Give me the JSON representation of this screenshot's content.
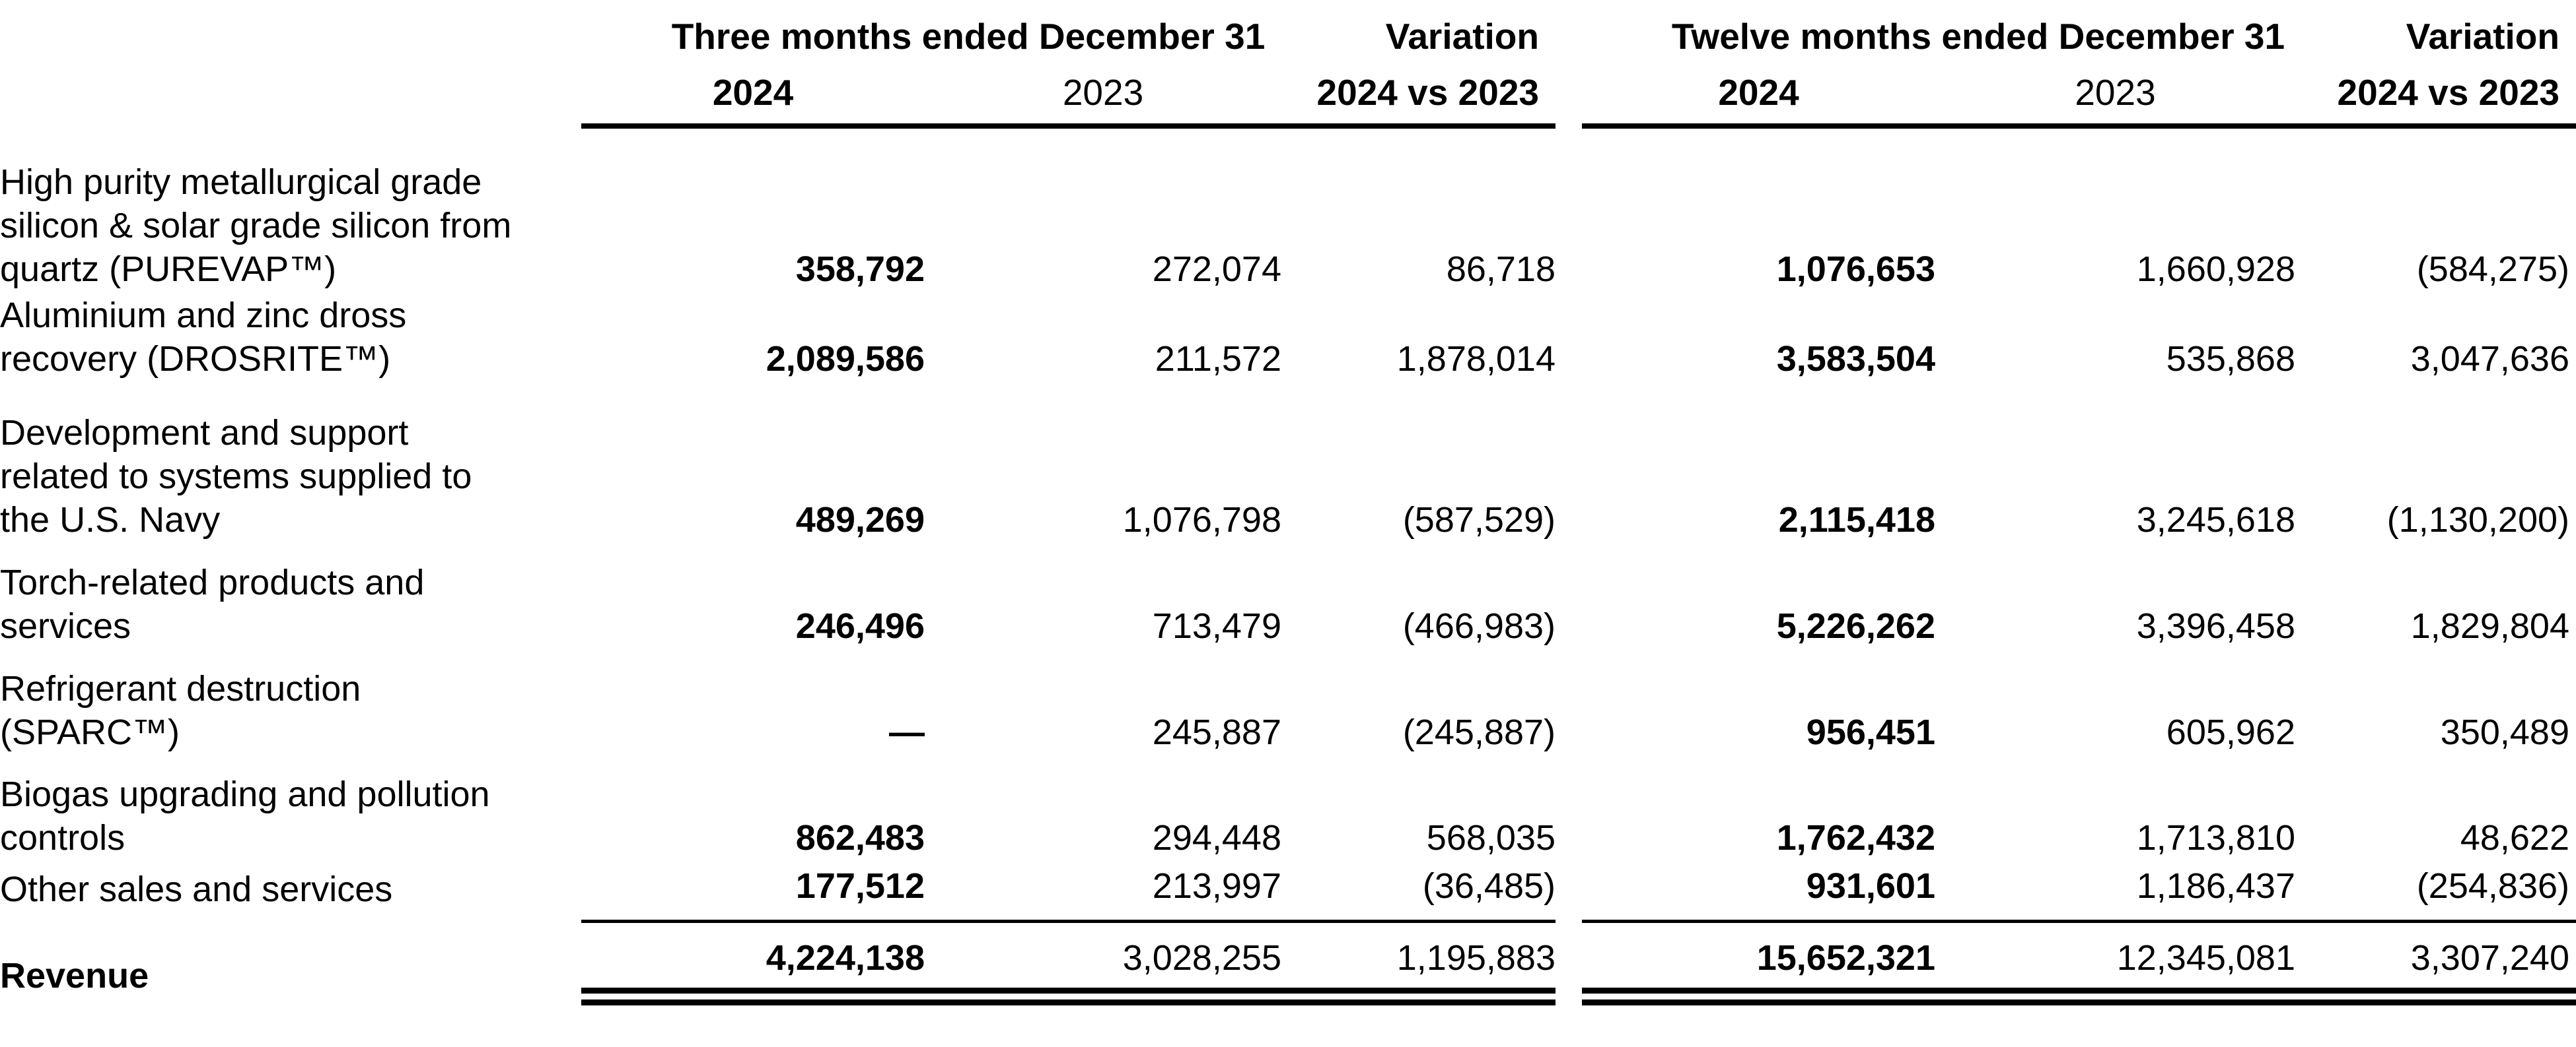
{
  "table": {
    "groups": [
      {
        "title": "Three months ended December 31",
        "variation_label": "Variation"
      },
      {
        "title": "Twelve months ended December 31",
        "variation_label": "Variation"
      }
    ],
    "year_headers": [
      "2024",
      "2023",
      "2024 vs 2023",
      "2024",
      "2023",
      "2024 vs 2023"
    ],
    "rows": [
      {
        "label": "High purity metallurgical grade\nsilicon & solar grade silicon from\nquartz (PUREVAP™)",
        "values": [
          "358,792",
          "272,074",
          "86,718",
          "1,076,653",
          "1,660,928",
          "(584,275)"
        ]
      },
      {
        "label": "Aluminium and zinc dross\nrecovery (DROSRITE™)",
        "values": [
          "2,089,586",
          "211,572",
          "1,878,014",
          "3,583,504",
          "535,868",
          "3,047,636"
        ]
      },
      {
        "label": "Development and support\nrelated to systems supplied to\nthe U.S. Navy",
        "values": [
          "489,269",
          "1,076,798",
          "(587,529)",
          "2,115,418",
          "3,245,618",
          "(1,130,200)"
        ]
      },
      {
        "label": "Torch-related products and\nservices",
        "values": [
          "246,496",
          "713,479",
          "(466,983)",
          "5,226,262",
          "3,396,458",
          "1,829,804"
        ]
      },
      {
        "label": "Refrigerant destruction\n(SPARC™)",
        "values": [
          "—",
          "245,887",
          "(245,887)",
          "956,451",
          "605,962",
          "350,489"
        ]
      },
      {
        "label": "Biogas upgrading and pollution\ncontrols",
        "values": [
          "862,483",
          "294,448",
          "568,035",
          "1,762,432",
          "1,713,810",
          "48,622"
        ]
      },
      {
        "label": "Other sales and services",
        "values": [
          "177,512",
          "213,997",
          "(36,485)",
          "931,601",
          "1,186,437",
          "(254,836)"
        ]
      }
    ],
    "total_row": {
      "label": "Revenue",
      "values": [
        "4,224,138",
        "3,028,255",
        "1,195,883",
        "15,652,321",
        "12,345,081",
        "3,307,240"
      ]
    }
  }
}
